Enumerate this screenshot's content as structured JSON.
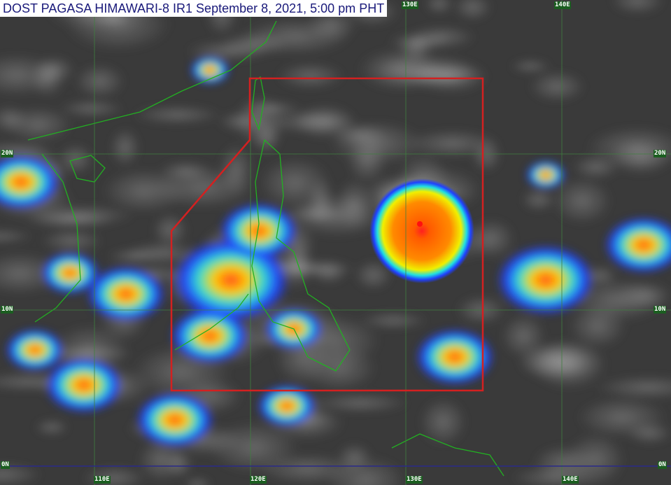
{
  "title": "DOST PAGASA HIMAWARI-8 IR1 September 8, 2021, 5:00 pm PHT",
  "colors": {
    "background": "#3a3a3a",
    "grid": "#3f7f3f",
    "equator": "#2a2a8a",
    "coastline": "#22b022",
    "par_box": "#d42020"
  },
  "longitude_labels": {
    "top": [
      "130E",
      "140E"
    ],
    "bottom": [
      "110E",
      "120E",
      "130E",
      "140E"
    ]
  },
  "latitude_labels": {
    "left": [
      "20N",
      "10N",
      "0N"
    ],
    "right": [
      "20N",
      "10N",
      "0N"
    ]
  }
}
